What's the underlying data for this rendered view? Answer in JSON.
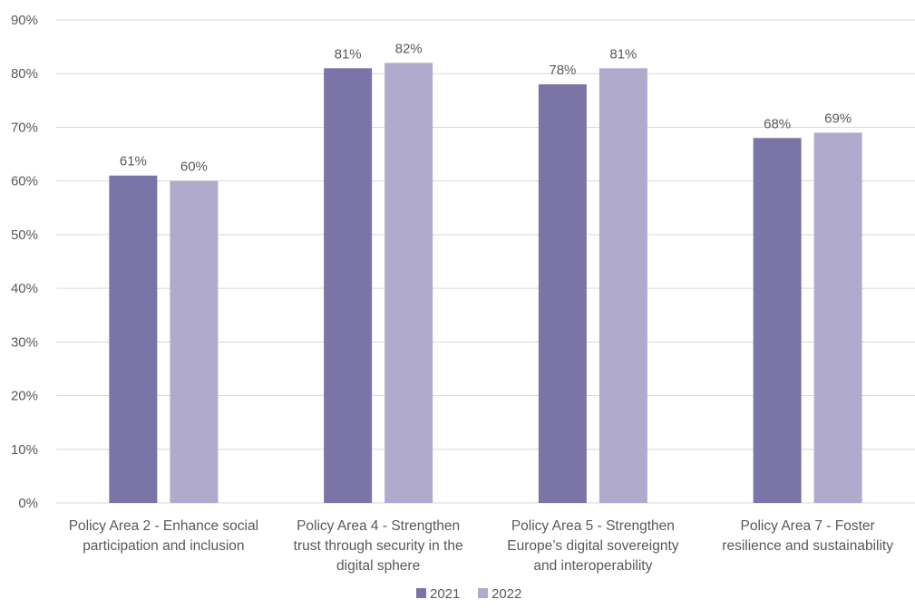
{
  "chart_data": {
    "type": "bar",
    "title": "",
    "xlabel": "",
    "ylabel": "",
    "ylim": [
      0,
      90
    ],
    "yticks": [
      "0%",
      "10%",
      "20%",
      "30%",
      "40%",
      "50%",
      "60%",
      "70%",
      "80%",
      "90%"
    ],
    "grid": true,
    "legend_position": "bottom-center",
    "categories": [
      [
        "Policy Area 2 - Enhance social",
        "participation and inclusion"
      ],
      [
        "Policy Area 4 - Strengthen",
        "trust through security in the",
        "digital sphere"
      ],
      [
        "Policy Area 5 - Strengthen",
        "Europe’s digital sovereignty",
        "and interoperability"
      ],
      [
        "Policy Area 7 - Foster",
        "resilience and sustainability"
      ]
    ],
    "series": [
      {
        "name": "2021",
        "color": "#7b74a6",
        "values": [
          61,
          81,
          78,
          68
        ],
        "labels": [
          "61%",
          "81%",
          "78%",
          "68%"
        ]
      },
      {
        "name": "2022",
        "color": "#b0abcd",
        "values": [
          60,
          82,
          81,
          69
        ],
        "labels": [
          "60%",
          "82%",
          "81%",
          "69%"
        ]
      }
    ]
  }
}
